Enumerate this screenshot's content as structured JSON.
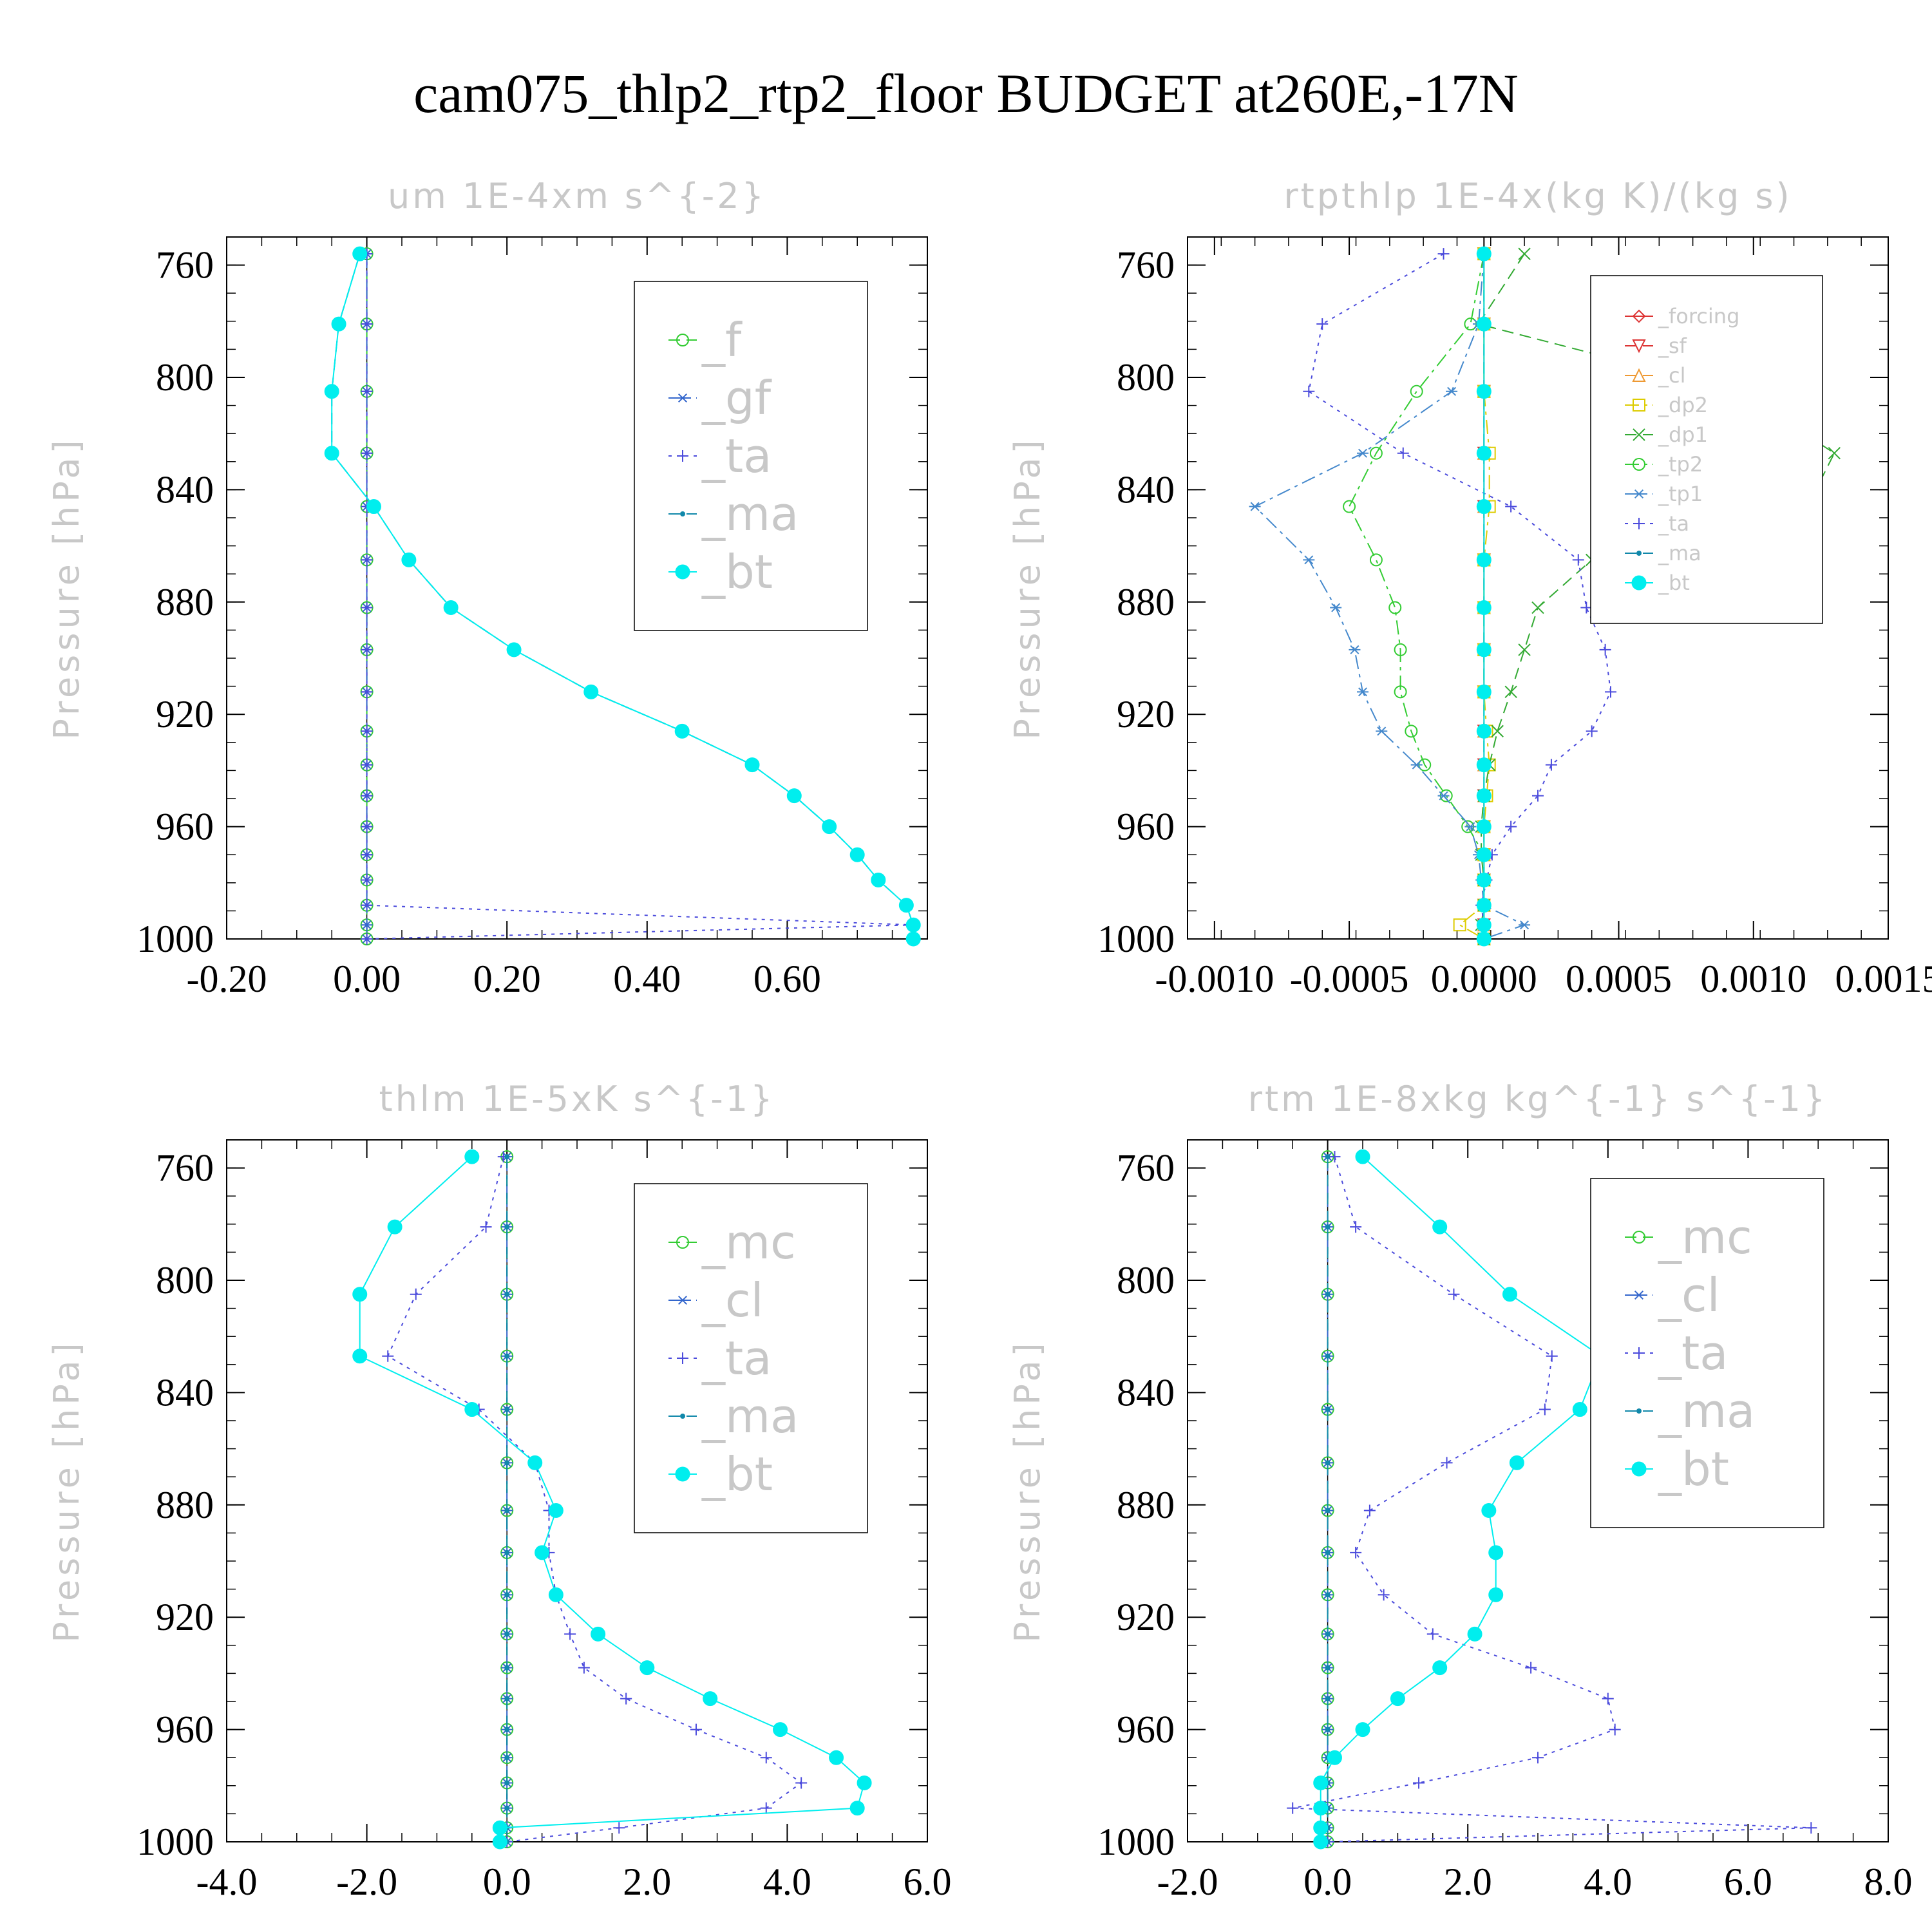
{
  "title": "cam075_thlp2_rtp2_floor  BUDGET at260E,-17N",
  "colors": {
    "green": "#33cc33",
    "blue": "#3366cc",
    "purple": "#4b4bdc",
    "teal": "#1188aa",
    "cyan": "#00eeee",
    "red": "#dd3333",
    "orange": "#ee9933",
    "yellow": "#ddcc00",
    "label_grey": "#c8c8c8"
  },
  "chart_data": [
    {
      "type": "line",
      "title": "um  1E-4xm s^{-2}",
      "ylabel": "Pressure [hPa]",
      "ylim": [
        1000,
        750
      ],
      "xlim": [
        -0.2,
        0.8
      ],
      "xticks": [
        "-0.20",
        "0.00",
        "0.20",
        "0.40",
        "0.60"
      ],
      "xtick_values": [
        -0.2,
        0,
        0.2,
        0.4,
        0.6
      ],
      "yticks": [
        "760",
        "800",
        "840",
        "880",
        "920",
        "960",
        "1000"
      ],
      "pressure": [
        756,
        781,
        805,
        827,
        846,
        865,
        882,
        897,
        912,
        926,
        938,
        949,
        960,
        970,
        979,
        988,
        995,
        1000
      ],
      "series": [
        {
          "name": "_f",
          "color": "#33cc33",
          "marker": "circle-open",
          "dash": "dash",
          "values": [
            0,
            0,
            0,
            0,
            0,
            0,
            0,
            0,
            0,
            0,
            0,
            0,
            0,
            0,
            0,
            0,
            0,
            0
          ]
        },
        {
          "name": "_gf",
          "color": "#3366cc",
          "marker": "star",
          "dash": "dashdot",
          "values": [
            0,
            0,
            0,
            0,
            0,
            0,
            0,
            0,
            0,
            0,
            0,
            0,
            0,
            0,
            0,
            0,
            0,
            0
          ]
        },
        {
          "name": "_ta",
          "color": "#4b4bdc",
          "marker": "plus",
          "dash": "dot",
          "values": [
            0,
            0,
            0,
            0,
            0,
            0,
            0,
            0,
            0,
            0,
            0,
            0,
            0,
            0,
            0,
            0,
            0.78,
            0
          ]
        },
        {
          "name": "_ma",
          "color": "#1188aa",
          "marker": "dot",
          "dash": "dash",
          "values": [
            -0.01,
            -0.04,
            -0.05,
            -0.05,
            0.01,
            0.06,
            0.12,
            0.21,
            0.32,
            0.45,
            0.55,
            0.61,
            0.66,
            0.7,
            0.73,
            0.77,
            0.78,
            0.78
          ]
        },
        {
          "name": "_bt",
          "color": "#00eeee",
          "marker": "circle-filled",
          "dash": "solid",
          "values": [
            -0.01,
            -0.04,
            -0.05,
            -0.05,
            0.01,
            0.06,
            0.12,
            0.21,
            0.32,
            0.45,
            0.55,
            0.61,
            0.66,
            0.7,
            0.73,
            0.77,
            0.78,
            0.78
          ]
        }
      ],
      "legend_position": "top-right"
    },
    {
      "type": "line",
      "title": "rtpthlp  1E-4x(kg K)/(kg s)",
      "ylabel": "Pressure [hPa]",
      "ylim": [
        1000,
        750
      ],
      "xlim": [
        -0.0011,
        0.0015
      ],
      "xticks": [
        "-0.0010",
        "-0.0005",
        "0.0000",
        "0.0005",
        "0.0010",
        "0.0015"
      ],
      "xtick_values": [
        -0.001,
        -0.0005,
        0,
        0.0005,
        0.001,
        0.0015
      ],
      "yticks": [
        "760",
        "800",
        "840",
        "880",
        "920",
        "960",
        "1000"
      ],
      "pressure": [
        756,
        781,
        805,
        827,
        846,
        865,
        882,
        897,
        912,
        926,
        938,
        949,
        960,
        970,
        979,
        988,
        995,
        1000
      ],
      "series": [
        {
          "name": "_forcing",
          "color": "#dd3333",
          "marker": "diamond",
          "dash": "solid",
          "values": [
            0,
            0,
            0,
            0,
            0,
            0,
            0,
            0,
            0,
            0,
            0,
            0,
            0,
            0,
            0,
            0,
            0,
            0
          ]
        },
        {
          "name": "_sf",
          "color": "#dd3333",
          "marker": "triangle-down",
          "dash": "dash",
          "values": [
            0,
            0,
            0,
            0,
            0,
            0,
            0,
            0,
            0,
            0,
            0,
            0,
            0,
            0,
            0,
            0,
            0,
            0
          ]
        },
        {
          "name": "_cl",
          "color": "#ee9933",
          "marker": "triangle",
          "dash": "dash",
          "values": [
            0,
            0,
            0,
            0,
            0,
            0,
            0,
            0,
            0,
            0,
            0,
            0,
            0,
            0,
            0,
            0,
            0,
            0
          ]
        },
        {
          "name": "_dp2",
          "color": "#ddcc00",
          "marker": "square",
          "dash": "dashdot",
          "values": [
            0,
            0,
            0,
            2e-05,
            2e-05,
            0,
            0,
            0,
            0,
            1e-05,
            2e-05,
            1e-05,
            0,
            0,
            0,
            0,
            -9e-05,
            0
          ]
        },
        {
          "name": "_dp1",
          "color": "#33aa33",
          "marker": "cross",
          "dash": "dash",
          "values": [
            0.00015,
            -2e-05,
            0.00095,
            0.0013,
            0.0012,
            0.0004,
            0.0002,
            0.00015,
            0.0001,
            5e-05,
            2e-05,
            0,
            -1e-05,
            -1e-05,
            0,
            0,
            -1e-05,
            0
          ]
        },
        {
          "name": "_tp2",
          "color": "#33cc33",
          "marker": "circle-open",
          "dash": "dashdot",
          "values": [
            0,
            -5e-05,
            -0.00025,
            -0.0004,
            -0.0005,
            -0.0004,
            -0.00033,
            -0.00031,
            -0.00031,
            -0.00027,
            -0.00022,
            -0.00014,
            -6e-05,
            0,
            0,
            0,
            0,
            0
          ]
        },
        {
          "name": "_tp1",
          "color": "#4488cc",
          "marker": "star",
          "dash": "dashdot",
          "values": [
            0,
            -2e-05,
            -0.00012,
            -0.00045,
            -0.00085,
            -0.00065,
            -0.00055,
            -0.00048,
            -0.00045,
            -0.00038,
            -0.00025,
            -0.00015,
            -5e-05,
            -2e-05,
            -1e-05,
            0,
            0.00015,
            0
          ]
        },
        {
          "name": "_ta",
          "color": "#4b4bdc",
          "marker": "plus",
          "dash": "dot",
          "values": [
            -0.00015,
            -0.0006,
            -0.00065,
            -0.0003,
            0.0001,
            0.00035,
            0.00038,
            0.00045,
            0.00047,
            0.0004,
            0.00025,
            0.0002,
            0.0001,
            3e-05,
            1e-05,
            -1e-05,
            0,
            0
          ]
        },
        {
          "name": "_ma",
          "color": "#1188aa",
          "marker": "dot",
          "dash": "dash",
          "values": [
            0,
            0,
            0,
            0,
            0,
            0,
            0,
            0,
            0,
            0,
            0,
            0,
            0,
            0,
            0,
            0,
            0,
            0
          ]
        },
        {
          "name": "_bt",
          "color": "#00eeee",
          "marker": "circle-filled",
          "dash": "solid",
          "values": [
            0,
            0,
            0,
            0,
            0,
            0,
            0,
            0,
            0,
            0,
            0,
            0,
            0,
            0,
            0,
            0,
            0,
            0
          ]
        }
      ],
      "legend_position": "top-right"
    },
    {
      "type": "line",
      "title": "thlm  1E-5xK s^{-1}",
      "ylabel": "Pressure [hPa]",
      "ylim": [
        1000,
        750
      ],
      "xlim": [
        -4.0,
        6.0
      ],
      "xticks": [
        "-4.0",
        "-2.0",
        "0.0",
        "2.0",
        "4.0",
        "6.0"
      ],
      "xtick_values": [
        -4,
        -2,
        0,
        2,
        4,
        6
      ],
      "yticks": [
        "760",
        "800",
        "840",
        "880",
        "920",
        "960",
        "1000"
      ],
      "pressure": [
        756,
        781,
        805,
        827,
        846,
        865,
        882,
        897,
        912,
        926,
        938,
        949,
        960,
        970,
        979,
        988,
        995,
        1000
      ],
      "series": [
        {
          "name": "_mc",
          "color": "#33cc33",
          "marker": "circle-open",
          "dash": "dash",
          "values": [
            0,
            0,
            0,
            0,
            0,
            0,
            0,
            0,
            0,
            0,
            0,
            0,
            0,
            0,
            0,
            0,
            0,
            0
          ]
        },
        {
          "name": "_cl",
          "color": "#3366cc",
          "marker": "star",
          "dash": "dashdot",
          "values": [
            0,
            0,
            0,
            0,
            0,
            0,
            0,
            0,
            0,
            0,
            0,
            0,
            0,
            0,
            0,
            0,
            0,
            0
          ]
        },
        {
          "name": "_ta",
          "color": "#4b4bdc",
          "marker": "plus",
          "dash": "dot",
          "values": [
            -0.05,
            -0.3,
            -1.3,
            -1.7,
            -0.4,
            0.4,
            0.6,
            0.6,
            0.7,
            0.9,
            1.1,
            1.7,
            2.7,
            3.7,
            4.2,
            3.7,
            1.6,
            0
          ]
        },
        {
          "name": "_ma",
          "color": "#1188aa",
          "marker": "dot",
          "dash": "dash",
          "values": [
            0,
            0,
            0,
            0,
            0,
            0,
            0,
            0,
            0,
            0,
            0,
            0,
            0,
            0,
            0,
            0,
            0,
            0
          ]
        },
        {
          "name": "_bt",
          "color": "#00eeee",
          "marker": "circle-filled",
          "dash": "solid",
          "values": [
            -0.5,
            -1.6,
            -2.1,
            -2.1,
            -0.5,
            0.4,
            0.7,
            0.5,
            0.7,
            1.3,
            2.0,
            2.9,
            3.9,
            4.7,
            5.1,
            5.0,
            -0.1,
            -0.1
          ]
        }
      ],
      "legend_position": "top-right"
    },
    {
      "type": "line",
      "title": "rtm  1E-8xkg kg^{-1} s^{-1}",
      "ylabel": "Pressure [hPa]",
      "ylim": [
        1000,
        750
      ],
      "xlim": [
        -2.0,
        8.0
      ],
      "xticks": [
        "-2.0",
        "0.0",
        "2.0",
        "4.0",
        "6.0",
        "8.0"
      ],
      "xtick_values": [
        -2,
        0,
        2,
        4,
        6,
        8
      ],
      "yticks": [
        "760",
        "800",
        "840",
        "880",
        "920",
        "960",
        "1000"
      ],
      "pressure": [
        756,
        781,
        805,
        827,
        846,
        865,
        882,
        897,
        912,
        926,
        938,
        949,
        960,
        970,
        979,
        988,
        995,
        1000
      ],
      "series": [
        {
          "name": "_mc",
          "color": "#33cc33",
          "marker": "circle-open",
          "dash": "dash",
          "values": [
            0,
            0,
            0,
            0,
            0,
            0,
            0,
            0,
            0,
            0,
            0,
            0,
            0,
            0,
            0,
            0,
            0,
            0
          ]
        },
        {
          "name": "_cl",
          "color": "#3366cc",
          "marker": "star",
          "dash": "dashdot",
          "values": [
            0,
            0,
            0,
            0,
            0,
            0,
            0,
            0,
            0,
            0,
            0,
            0,
            0,
            0,
            0,
            0,
            0,
            0
          ]
        },
        {
          "name": "_ta",
          "color": "#4b4bdc",
          "marker": "plus",
          "dash": "dot",
          "values": [
            0.1,
            0.4,
            1.8,
            3.2,
            3.1,
            1.7,
            0.6,
            0.4,
            0.8,
            1.5,
            2.9,
            4.0,
            4.1,
            3.0,
            1.3,
            -0.5,
            6.9,
            0
          ]
        },
        {
          "name": "_ma",
          "color": "#1188aa",
          "marker": "dot",
          "dash": "dash",
          "values": [
            0,
            0,
            0,
            0,
            0,
            0,
            0,
            0,
            0,
            0,
            0,
            0,
            0,
            0,
            0,
            0,
            0,
            0
          ]
        },
        {
          "name": "_bt",
          "color": "#00eeee",
          "marker": "circle-filled",
          "dash": "solid",
          "values": [
            0.5,
            1.6,
            2.6,
            3.9,
            3.6,
            2.7,
            2.3,
            2.4,
            2.4,
            2.1,
            1.6,
            1.0,
            0.5,
            0.1,
            -0.1,
            -0.1,
            -0.1,
            -0.1
          ]
        }
      ],
      "legend_position": "top-right"
    }
  ]
}
